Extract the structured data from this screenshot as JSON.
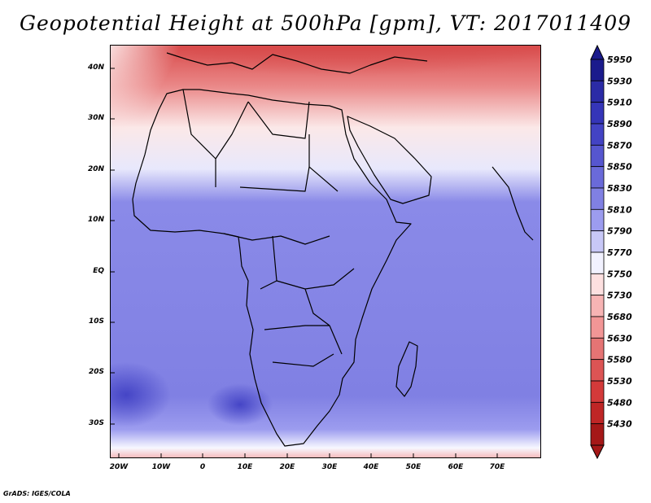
{
  "title": "Geopotential Height at 500hPa [gpm], VT: 2017011409",
  "credit": "GrADS: IGES/COLA",
  "axes": {
    "y_labels": [
      "40N",
      "30N",
      "20N",
      "10N",
      "EQ",
      "10S",
      "20S",
      "30S"
    ],
    "x_labels": [
      "20W",
      "10W",
      "0",
      "10E",
      "20E",
      "30E",
      "40E",
      "50E",
      "60E",
      "70E"
    ]
  },
  "colorbar": {
    "levels": [
      "5950",
      "5930",
      "5910",
      "5890",
      "5870",
      "5850",
      "5830",
      "5810",
      "5790",
      "5770",
      "5750",
      "5730",
      "5680",
      "5630",
      "5580",
      "5530",
      "5480",
      "5430"
    ],
    "colors": [
      "#1b1b8c",
      "#2b2ba6",
      "#3535b8",
      "#4343c4",
      "#5656cf",
      "#6a6ad9",
      "#8080e3",
      "#9c9cef",
      "#c8c8f7",
      "#f2f2ff",
      "#fde0e0",
      "#f7b4b4",
      "#f29696",
      "#e57474",
      "#dc5454",
      "#d33a3a",
      "#bf2626",
      "#a51818"
    ]
  }
}
